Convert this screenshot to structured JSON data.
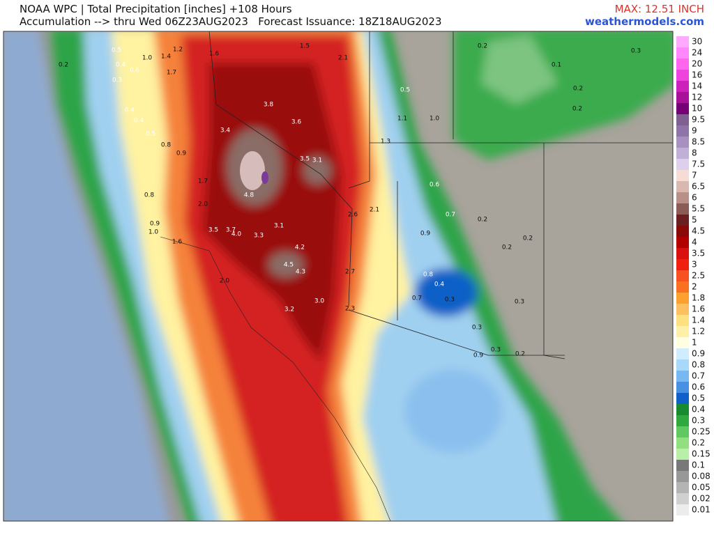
{
  "header": {
    "title": "NOAA WPC | Total Precipitation [inches] +108 Hours",
    "subtitle": "Accumulation --> thru Wed 06Z23AUG2023   Forecast Issuance: 18Z18AUG2023",
    "max": "MAX: 12.51 INCH",
    "site": "weathermodels.com"
  },
  "legend": [
    {
      "label": "30",
      "color": "#ffaaff"
    },
    {
      "label": "24",
      "color": "#ff88ff"
    },
    {
      "label": "20",
      "color": "#ff66ee"
    },
    {
      "label": "16",
      "color": "#ee44dd"
    },
    {
      "label": "14",
      "color": "#cc22bb"
    },
    {
      "label": "12",
      "color": "#aa1199"
    },
    {
      "label": "10",
      "color": "#770077"
    },
    {
      "label": "9.5",
      "color": "#806090"
    },
    {
      "label": "9",
      "color": "#8e74a8"
    },
    {
      "label": "8.5",
      "color": "#a890c0"
    },
    {
      "label": "8",
      "color": "#c0b0d8"
    },
    {
      "label": "7.5",
      "color": "#ddd0ec"
    },
    {
      "label": "7",
      "color": "#f5ddd5"
    },
    {
      "label": "6.5",
      "color": "#d8b8b0"
    },
    {
      "label": "6",
      "color": "#b89088"
    },
    {
      "label": "5.5",
      "color": "#8a5c55"
    },
    {
      "label": "5",
      "color": "#6a2020"
    },
    {
      "label": "4.5",
      "color": "#8a0a0a"
    },
    {
      "label": "4",
      "color": "#b00000"
    },
    {
      "label": "3.5",
      "color": "#d81010"
    },
    {
      "label": "3",
      "color": "#f02010"
    },
    {
      "label": "2.5",
      "color": "#f85020"
    },
    {
      "label": "2",
      "color": "#fb7020"
    },
    {
      "label": "1.8",
      "color": "#fca030"
    },
    {
      "label": "1.6",
      "color": "#fdc060"
    },
    {
      "label": "1.4",
      "color": "#fee080"
    },
    {
      "label": "1.2",
      "color": "#fff0a8"
    },
    {
      "label": "1",
      "color": "#ffffe0"
    },
    {
      "label": "0.9",
      "color": "#d0ecff"
    },
    {
      "label": "0.8",
      "color": "#a8d8fa"
    },
    {
      "label": "0.7",
      "color": "#78b8f0"
    },
    {
      "label": "0.6",
      "color": "#4890e0"
    },
    {
      "label": "0.5",
      "color": "#1060c8"
    },
    {
      "label": "0.4",
      "color": "#1a8a30"
    },
    {
      "label": "0.3",
      "color": "#30a840"
    },
    {
      "label": "0.25",
      "color": "#60c860"
    },
    {
      "label": "0.2",
      "color": "#90e080"
    },
    {
      "label": "0.15",
      "color": "#b8f0a8"
    },
    {
      "label": "0.1",
      "color": "#787878"
    },
    {
      "label": "0.08",
      "color": "#989898"
    },
    {
      "label": "0.05",
      "color": "#b4b4b4"
    },
    {
      "label": "0.02",
      "color": "#d0d0d0"
    },
    {
      "label": "0.01",
      "color": "#ececec"
    }
  ],
  "map_labels": [
    "0.5",
    "0.4",
    "0.2",
    "1.0",
    "1.4",
    "1.2",
    "1.6",
    "1.5",
    "2.1",
    "0.6",
    "1.7",
    "0.3",
    "0.4",
    "0.4",
    "0.5",
    "0.8",
    "0.9",
    "3.8",
    "3.6",
    "3.4",
    "3.5",
    "3.1",
    "1.7",
    "2.0",
    "4.8",
    "2.6",
    "2.1",
    "3.1",
    "3.5",
    "3.7",
    "4.0",
    "3.3",
    "4.2",
    "4.5",
    "4.3",
    "1.6",
    "2.0",
    "2.7",
    "3.2",
    "3.0",
    "2.3",
    "0.8",
    "0.9",
    "1.0",
    "0.2",
    "0.3",
    "0.1",
    "0.2",
    "0.2",
    "0.5",
    "1.1",
    "1.0",
    "1.3",
    "0.6",
    "0.7",
    "0.2",
    "0.9",
    "0.2",
    "0.2",
    "0.7",
    "0.3",
    "0.3",
    "0.3",
    "0.3",
    "0.9",
    "0.2",
    "0.8",
    "0.4"
  ]
}
